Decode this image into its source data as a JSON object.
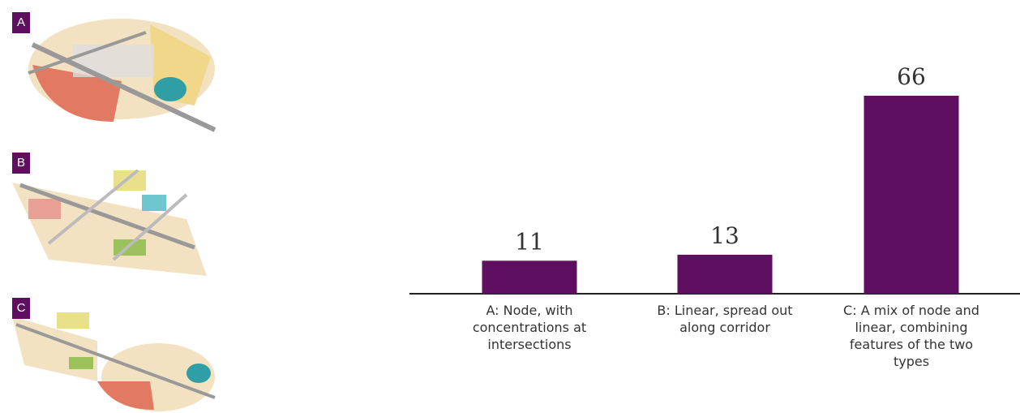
{
  "panels": [
    {
      "label": "A"
    },
    {
      "label": "B"
    },
    {
      "label": "C"
    }
  ],
  "chart_data": {
    "type": "bar",
    "color": "#5f0f5f",
    "categories": [
      "A: Node, with concentrations at intersections",
      "B: Linear, spread out along corridor",
      "C: A mix of node and linear, combining features of the two types"
    ],
    "values": [
      11,
      13,
      66
    ]
  }
}
